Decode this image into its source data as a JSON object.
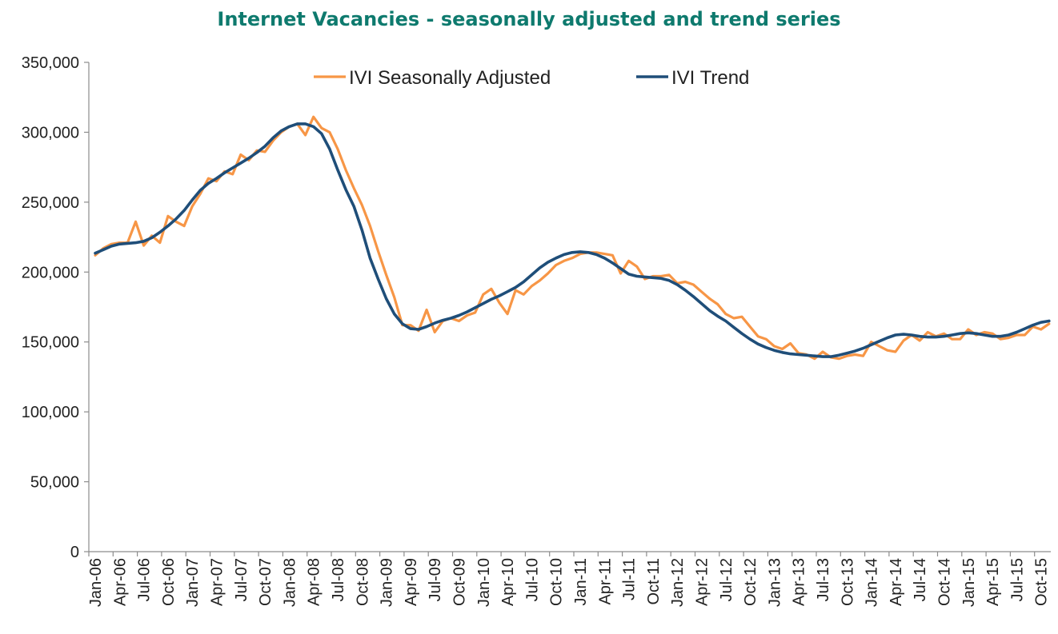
{
  "chart_data": {
    "type": "line",
    "title": "Internet Vacancies - seasonally adjusted and trend series",
    "xlabel": "",
    "ylabel": "",
    "ylim": [
      0,
      350000
    ],
    "y_ticks": [
      "0",
      "50,000",
      "100,000",
      "150,000",
      "200,000",
      "250,000",
      "300,000",
      "350,000"
    ],
    "x_tick_labels": [
      "Jan-06",
      "Apr-06",
      "Jul-06",
      "Oct-06",
      "Jan-07",
      "Apr-07",
      "Jul-07",
      "Oct-07",
      "Jan-08",
      "Apr-08",
      "Jul-08",
      "Oct-08",
      "Jan-09",
      "Apr-09",
      "Jul-09",
      "Oct-09",
      "Jan-10",
      "Apr-10",
      "Jul-10",
      "Oct-10",
      "Jan-11",
      "Apr-11",
      "Jul-11",
      "Oct-11",
      "Jan-12",
      "Apr-12",
      "Jul-12",
      "Oct-12",
      "Jan-13",
      "Apr-13",
      "Jul-13",
      "Oct-13",
      "Jan-14",
      "Apr-14",
      "Jul-14",
      "Oct-14",
      "Jan-15",
      "Apr-15",
      "Jul-15",
      "Oct-15"
    ],
    "x_start": "Jan-06",
    "frequency": "monthly",
    "grid": false,
    "legend_position": "top-center",
    "series": [
      {
        "name": "IVI Seasonally Adjusted",
        "color": "#f79646",
        "values": [
          212000,
          217000,
          220000,
          221000,
          221000,
          236000,
          219000,
          226000,
          221000,
          240000,
          236000,
          233000,
          247000,
          256000,
          267000,
          265000,
          272000,
          270000,
          284000,
          280000,
          287000,
          286000,
          294000,
          300000,
          304000,
          306000,
          298000,
          311000,
          303000,
          300000,
          288000,
          273000,
          260000,
          248000,
          233000,
          215000,
          198000,
          182000,
          162000,
          162000,
          158000,
          173000,
          157000,
          165000,
          167000,
          165000,
          169000,
          171000,
          184000,
          188000,
          178000,
          170000,
          187000,
          184000,
          190000,
          194000,
          199000,
          205000,
          208000,
          210000,
          213000,
          214000,
          214000,
          213000,
          212000,
          199000,
          208000,
          204000,
          195000,
          197000,
          197000,
          198000,
          192000,
          193000,
          191000,
          186000,
          181000,
          177000,
          170000,
          167000,
          168000,
          161000,
          154000,
          152000,
          147000,
          145000,
          149000,
          142000,
          141000,
          138000,
          143000,
          139000,
          138000,
          140000,
          141000,
          140000,
          150000,
          147000,
          144000,
          143000,
          151000,
          155000,
          151000,
          157000,
          154000,
          156000,
          152000,
          152000,
          159000,
          155000,
          157000,
          156000,
          152000,
          153000,
          155000,
          155000,
          161000,
          159000,
          163000
        ],
        "trend_comment": ""
      },
      {
        "name": "IVI Trend",
        "color": "#1f4e79",
        "values": [
          213500,
          216000,
          218500,
          220000,
          220500,
          221000,
          222000,
          224500,
          228500,
          233000,
          238000,
          244000,
          251500,
          258500,
          263500,
          267000,
          271000,
          274500,
          278000,
          281500,
          285500,
          290000,
          296000,
          301000,
          304000,
          306000,
          306000,
          304000,
          299000,
          288000,
          273000,
          259000,
          247000,
          230000,
          210000,
          195000,
          181000,
          170000,
          163000,
          159500,
          159000,
          161000,
          163500,
          165500,
          167000,
          169000,
          171500,
          174500,
          177500,
          180500,
          183000,
          186000,
          189000,
          193000,
          198000,
          203000,
          207000,
          210000,
          212500,
          214000,
          214500,
          214000,
          212500,
          210000,
          206500,
          202500,
          198500,
          197000,
          196500,
          196000,
          195500,
          194000,
          191000,
          187000,
          182500,
          177500,
          172500,
          168500,
          165000,
          160500,
          156000,
          152000,
          148500,
          146000,
          144000,
          142500,
          141500,
          141000,
          140500,
          140000,
          139500,
          139500,
          140500,
          142000,
          143500,
          145500,
          148000,
          150500,
          153000,
          155000,
          155500,
          155000,
          154000,
          153500,
          153500,
          154000,
          155000,
          156000,
          156500,
          156000,
          155000,
          154000,
          154000,
          155000,
          157000,
          159500,
          162000,
          164000,
          165000
        ]
      }
    ]
  }
}
